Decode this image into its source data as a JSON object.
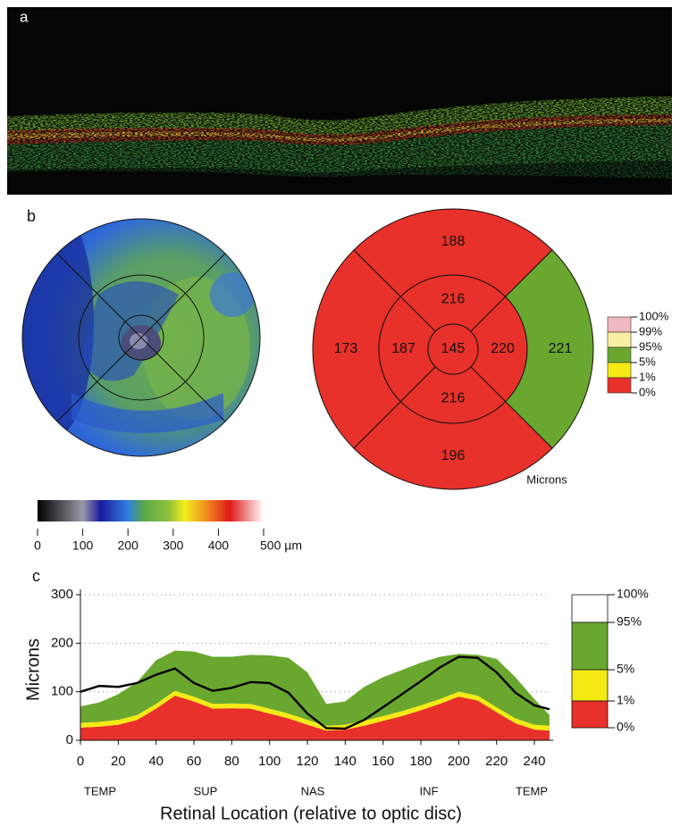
{
  "panel_a": {
    "label": "a"
  },
  "panel_b": {
    "label": "b",
    "thickness_colorbar": {
      "range": [
        0,
        500
      ],
      "ticks": [
        0,
        100,
        200,
        300,
        400,
        {
          "value": 500,
          "label": "500 µm"
        }
      ]
    },
    "sector_map": {
      "center_value": 145,
      "center_color": "#e8312a",
      "inner_values": [
        216,
        220,
        216,
        187
      ],
      "inner_colors": [
        "#e8312a",
        "#e8312a",
        "#e8312a",
        "#e8312a"
      ],
      "outer_values": [
        188,
        221,
        196,
        173
      ],
      "outer_colors": [
        "#e8312a",
        "#6aa72f",
        "#e8312a",
        "#e8312a"
      ],
      "unit_label": "Microns",
      "legend_labels": [
        "100%",
        "99%",
        "95%",
        "5%",
        "1%",
        "0%"
      ],
      "legend_colors": [
        "#f0b8c0",
        "#f8f0a0",
        "#6aa72f",
        "#f5ea14",
        "#e8312a"
      ]
    }
  },
  "panel_c": {
    "label": "c",
    "region_labels": [
      "TEMP",
      "SUP",
      "NAS",
      "INF",
      "TEMP"
    ]
  },
  "chart_data": {
    "type": "area",
    "xlabel": "Retinal Location (relative to optic disc)",
    "ylabel": "Microns",
    "x": [
      0,
      10,
      20,
      30,
      40,
      50,
      60,
      70,
      80,
      90,
      100,
      110,
      120,
      130,
      140,
      150,
      160,
      170,
      180,
      190,
      200,
      210,
      220,
      230,
      240,
      248
    ],
    "series": [
      {
        "type": "area",
        "color": "#e8312a",
        "values": [
          26,
          28,
          32,
          42,
          65,
          92,
          80,
          65,
          66,
          65,
          55,
          45,
          32,
          20,
          22,
          30,
          40,
          50,
          62,
          75,
          90,
          82,
          58,
          35,
          22,
          20
        ]
      },
      {
        "type": "area",
        "color": "#f5ea14",
        "values": [
          10,
          10,
          10,
          10,
          10,
          10,
          10,
          10,
          10,
          10,
          10,
          10,
          10,
          10,
          10,
          10,
          10,
          10,
          10,
          10,
          10,
          10,
          10,
          10,
          10,
          10
        ]
      },
      {
        "type": "area",
        "color": "#6aa72f",
        "values": [
          34,
          40,
          53,
          68,
          90,
          83,
          93,
          97,
          96,
          101,
          110,
          115,
          98,
          45,
          48,
          70,
          80,
          85,
          88,
          87,
          78,
          84,
          100,
          85,
          53,
          22
        ]
      },
      {
        "type": "line",
        "color": "#000000",
        "values": [
          100,
          112,
          110,
          118,
          135,
          148,
          118,
          102,
          108,
          120,
          118,
          98,
          55,
          25,
          24,
          42,
          68,
          95,
          122,
          150,
          172,
          170,
          140,
          98,
          72,
          64
        ]
      }
    ],
    "xlim": [
      0,
      250
    ],
    "ylim": [
      0,
      300
    ],
    "xticks": [
      0,
      20,
      40,
      60,
      80,
      100,
      120,
      140,
      160,
      180,
      200,
      220,
      240
    ],
    "yticks": [
      0,
      100,
      200,
      300
    ],
    "grid": true,
    "legend_labels": [
      "100%",
      "95%",
      "5%",
      "1%",
      "0%"
    ],
    "legend_colors": [
      "#ffffff",
      "#6aa72f",
      "#f5ea14",
      "#e8312a"
    ]
  }
}
